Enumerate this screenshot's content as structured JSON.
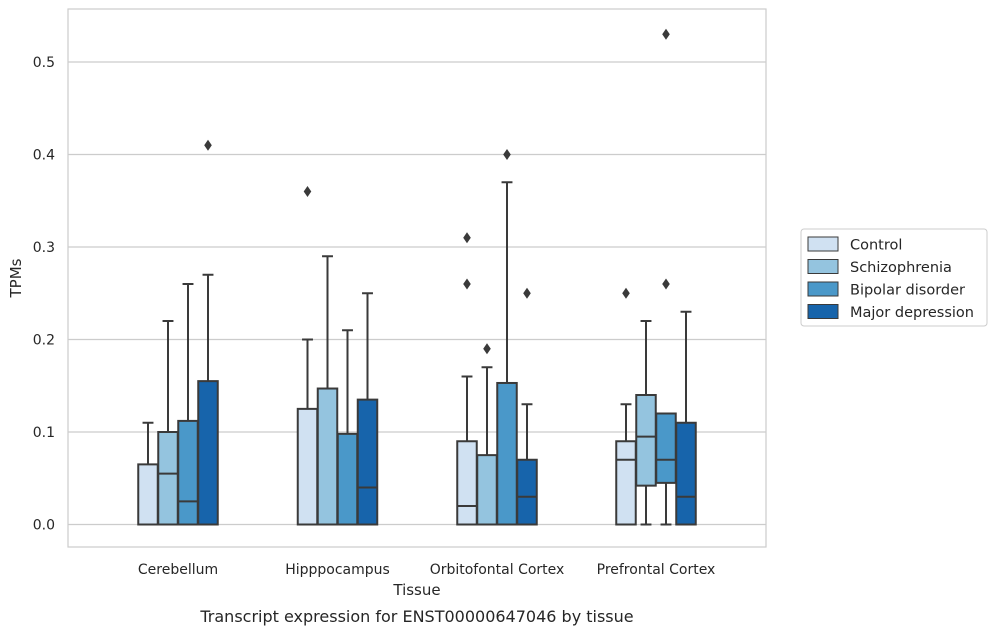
{
  "chart_data": {
    "type": "box",
    "title": "",
    "caption": "Transcript expression for ENST00000647046 by tissue",
    "xlabel": "Tissue",
    "ylabel": "TPMs",
    "ylim": [
      -0.025,
      0.556
    ],
    "yticks": [
      "0.0",
      "0.1",
      "0.2",
      "0.3",
      "0.4",
      "0.5"
    ],
    "ytick_values": [
      0.0,
      0.1,
      0.2,
      0.3,
      0.4,
      0.5
    ],
    "grid": true,
    "legend_position": "right",
    "categories": [
      "Cerebellum",
      "Hipppocampus",
      "Orbitofontal Cortex",
      "Prefrontal Cortex"
    ],
    "series": [
      {
        "name": "Control",
        "color": "#d0e1f2",
        "boxes": [
          {
            "q1": 0.0,
            "median": 0.0,
            "q3": 0.065,
            "whisker_low": 0.0,
            "whisker_high": 0.11,
            "outliers": []
          },
          {
            "q1": 0.0,
            "median": 0.0,
            "q3": 0.125,
            "whisker_low": 0.0,
            "whisker_high": 0.2,
            "outliers": [
              0.36
            ]
          },
          {
            "q1": 0.0,
            "median": 0.02,
            "q3": 0.09,
            "whisker_low": 0.0,
            "whisker_high": 0.16,
            "outliers": [
              0.26,
              0.31
            ]
          },
          {
            "q1": 0.0,
            "median": 0.07,
            "q3": 0.09,
            "whisker_low": 0.0,
            "whisker_high": 0.13,
            "outliers": [
              0.25
            ]
          }
        ]
      },
      {
        "name": "Schizophrenia",
        "color": "#94c4df",
        "boxes": [
          {
            "q1": 0.0,
            "median": 0.055,
            "q3": 0.1,
            "whisker_low": 0.0,
            "whisker_high": 0.22,
            "outliers": []
          },
          {
            "q1": 0.0,
            "median": 0.0,
            "q3": 0.147,
            "whisker_low": 0.0,
            "whisker_high": 0.29,
            "outliers": []
          },
          {
            "q1": 0.0,
            "median": 0.0,
            "q3": 0.075,
            "whisker_low": 0.0,
            "whisker_high": 0.17,
            "outliers": [
              0.19
            ]
          },
          {
            "q1": 0.042,
            "median": 0.095,
            "q3": 0.14,
            "whisker_low": 0.0,
            "whisker_high": 0.22,
            "outliers": []
          }
        ]
      },
      {
        "name": "Bipolar disorder",
        "color": "#4a98c9",
        "boxes": [
          {
            "q1": 0.0,
            "median": 0.025,
            "q3": 0.112,
            "whisker_low": 0.0,
            "whisker_high": 0.26,
            "outliers": []
          },
          {
            "q1": 0.0,
            "median": 0.0,
            "q3": 0.098,
            "whisker_low": 0.0,
            "whisker_high": 0.21,
            "outliers": []
          },
          {
            "q1": 0.0,
            "median": 0.0,
            "q3": 0.153,
            "whisker_low": 0.0,
            "whisker_high": 0.37,
            "outliers": [
              0.4
            ]
          },
          {
            "q1": 0.045,
            "median": 0.07,
            "q3": 0.12,
            "whisker_low": 0.0,
            "whisker_high": 0.12,
            "outliers": [
              0.26,
              0.53
            ]
          }
        ]
      },
      {
        "name": "Major depression",
        "color": "#1764ab",
        "boxes": [
          {
            "q1": 0.0,
            "median": 0.0,
            "q3": 0.155,
            "whisker_low": 0.0,
            "whisker_high": 0.27,
            "outliers": [
              0.41
            ]
          },
          {
            "q1": 0.0,
            "median": 0.04,
            "q3": 0.135,
            "whisker_low": 0.0,
            "whisker_high": 0.25,
            "outliers": []
          },
          {
            "q1": 0.0,
            "median": 0.03,
            "q3": 0.07,
            "whisker_low": 0.0,
            "whisker_high": 0.13,
            "outliers": [
              0.25
            ]
          },
          {
            "q1": 0.0,
            "median": 0.03,
            "q3": 0.11,
            "whisker_low": 0.0,
            "whisker_high": 0.23,
            "outliers": []
          }
        ]
      }
    ]
  }
}
